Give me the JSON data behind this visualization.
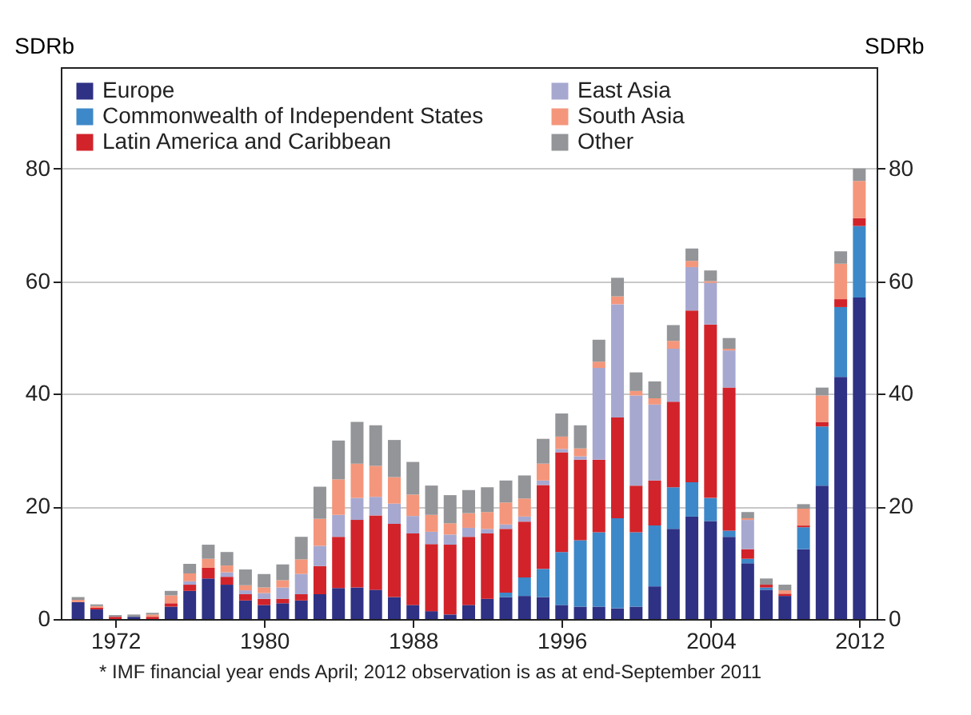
{
  "chart_data": {
    "type": "bar",
    "stacked": true,
    "x": [
      1970,
      1971,
      1972,
      1973,
      1974,
      1975,
      1976,
      1977,
      1978,
      1979,
      1980,
      1981,
      1982,
      1983,
      1984,
      1985,
      1986,
      1987,
      1988,
      1989,
      1990,
      1991,
      1992,
      1993,
      1994,
      1995,
      1996,
      1997,
      1998,
      1999,
      2000,
      2001,
      2002,
      2003,
      2004,
      2005,
      2006,
      2007,
      2008,
      2009,
      2010,
      2011,
      2012
    ],
    "series": [
      {
        "name": "Europe",
        "color": "#2e3184",
        "values": [
          3.0,
          1.7,
          0,
          0.4,
          0,
          2.2,
          5.0,
          7.2,
          6.1,
          3.3,
          2.5,
          2.8,
          3.3,
          4.4,
          5.5,
          5.6,
          5.2,
          3.9,
          2.5,
          1.4,
          0.8,
          2.5,
          3.6,
          3.9,
          4.1,
          3.9,
          2.5,
          2.2,
          2.2,
          1.9,
          2.2,
          5.8,
          16.0,
          18.2,
          17.4,
          14.6,
          9.9,
          5.2,
          4.1,
          12.4,
          23.7,
          43.0,
          57.1
        ]
      },
      {
        "name": "Commonwealth of Independent States",
        "color": "#3d88c8",
        "values": [
          0,
          0,
          0,
          0,
          0,
          0,
          0,
          0,
          0,
          0,
          0,
          0,
          0,
          0,
          0,
          0,
          0,
          0,
          0,
          0,
          0,
          0,
          0,
          0.8,
          3.3,
          5.0,
          9.4,
          11.8,
          13.2,
          16.0,
          13.2,
          10.8,
          7.4,
          6.1,
          4.1,
          1.1,
          0.8,
          0.4,
          0,
          3.9,
          10.5,
          12.4,
          12.7
        ]
      },
      {
        "name": "Latin America and Caribbean",
        "color": "#d2232a",
        "values": [
          0,
          0.3,
          0.4,
          0,
          0.4,
          0.6,
          1.1,
          1.9,
          1.4,
          1.1,
          1.1,
          0.8,
          1.1,
          5.0,
          9.1,
          12.0,
          13.2,
          13.0,
          12.7,
          11.9,
          12.4,
          12.1,
          11.6,
          11.3,
          9.9,
          14.9,
          17.7,
          14.3,
          12.9,
          17.9,
          8.3,
          8.0,
          15.2,
          30.5,
          30.8,
          25.4,
          1.7,
          0.5,
          0.4,
          0.3,
          0.8,
          1.4,
          1.4
        ]
      },
      {
        "name": "East Asia",
        "color": "#a7a8d0",
        "values": [
          0,
          0,
          0,
          0,
          0,
          0,
          0.6,
          null,
          0.8,
          0.7,
          1.0,
          2.0,
          3.6,
          3.6,
          3.9,
          3.9,
          3.3,
          3.6,
          3.1,
          2.2,
          1.8,
          1.6,
          0.8,
          0.8,
          0.9,
          0.8,
          0.6,
          0.6,
          16.3,
          20.1,
          16.0,
          13.5,
          9.4,
          7.7,
          7.4,
          6.6,
          5.2,
          0,
          0,
          0,
          0,
          0,
          0
        ]
      },
      {
        "name": "South Asia",
        "color": "#f4967b",
        "values": [
          0.4,
          0.3,
          0,
          0,
          0.4,
          1.4,
          1.4,
          1.6,
          1.2,
          0.9,
          1.0,
          1.3,
          2.6,
          4.8,
          6.3,
          6.1,
          5.5,
          4.7,
          3.8,
          3.0,
          2.0,
          2.6,
          3.0,
          3.9,
          3.2,
          3.0,
          2.2,
          1.4,
          1.1,
          1.4,
          0.8,
          1.1,
          1.4,
          1.1,
          0.3,
          0.3,
          0.3,
          0,
          0.6,
          3.0,
          4.7,
          6.3,
          6.6
        ]
      },
      {
        "name": "Other",
        "color": "#939598",
        "values": [
          0.5,
          0.3,
          0.3,
          0.4,
          0.3,
          0.8,
          1.7,
          2.5,
          2.4,
          2.8,
          2.4,
          2.8,
          4.0,
          5.7,
          6.9,
          7.4,
          7.2,
          6.6,
          5.8,
          5.2,
          5.0,
          4.1,
          4.4,
          3.9,
          4.1,
          4.4,
          4.1,
          4.1,
          3.9,
          3.3,
          3.3,
          3.0,
          2.8,
          2.2,
          1.9,
          1.9,
          1.1,
          1.1,
          1.0,
          0.8,
          1.4,
          2.2,
          2.2
        ]
      }
    ],
    "xlim": [
      1969.5,
      2012.5
    ],
    "xticks": [
      1972,
      1980,
      1988,
      1996,
      2004,
      2012
    ],
    "ylim": [
      0,
      98
    ],
    "yticks": [
      0,
      20,
      40,
      60,
      80
    ],
    "ylabel": "SDRb",
    "y2lim": [
      0,
      98
    ],
    "y2ticks": [
      0,
      20,
      40,
      60,
      80
    ],
    "y2label": "SDRb",
    "grid": "y",
    "legend": "top",
    "annotations": [
      "*   IMF financial year ends April; 2012 observation is as at end-September 2011"
    ]
  }
}
